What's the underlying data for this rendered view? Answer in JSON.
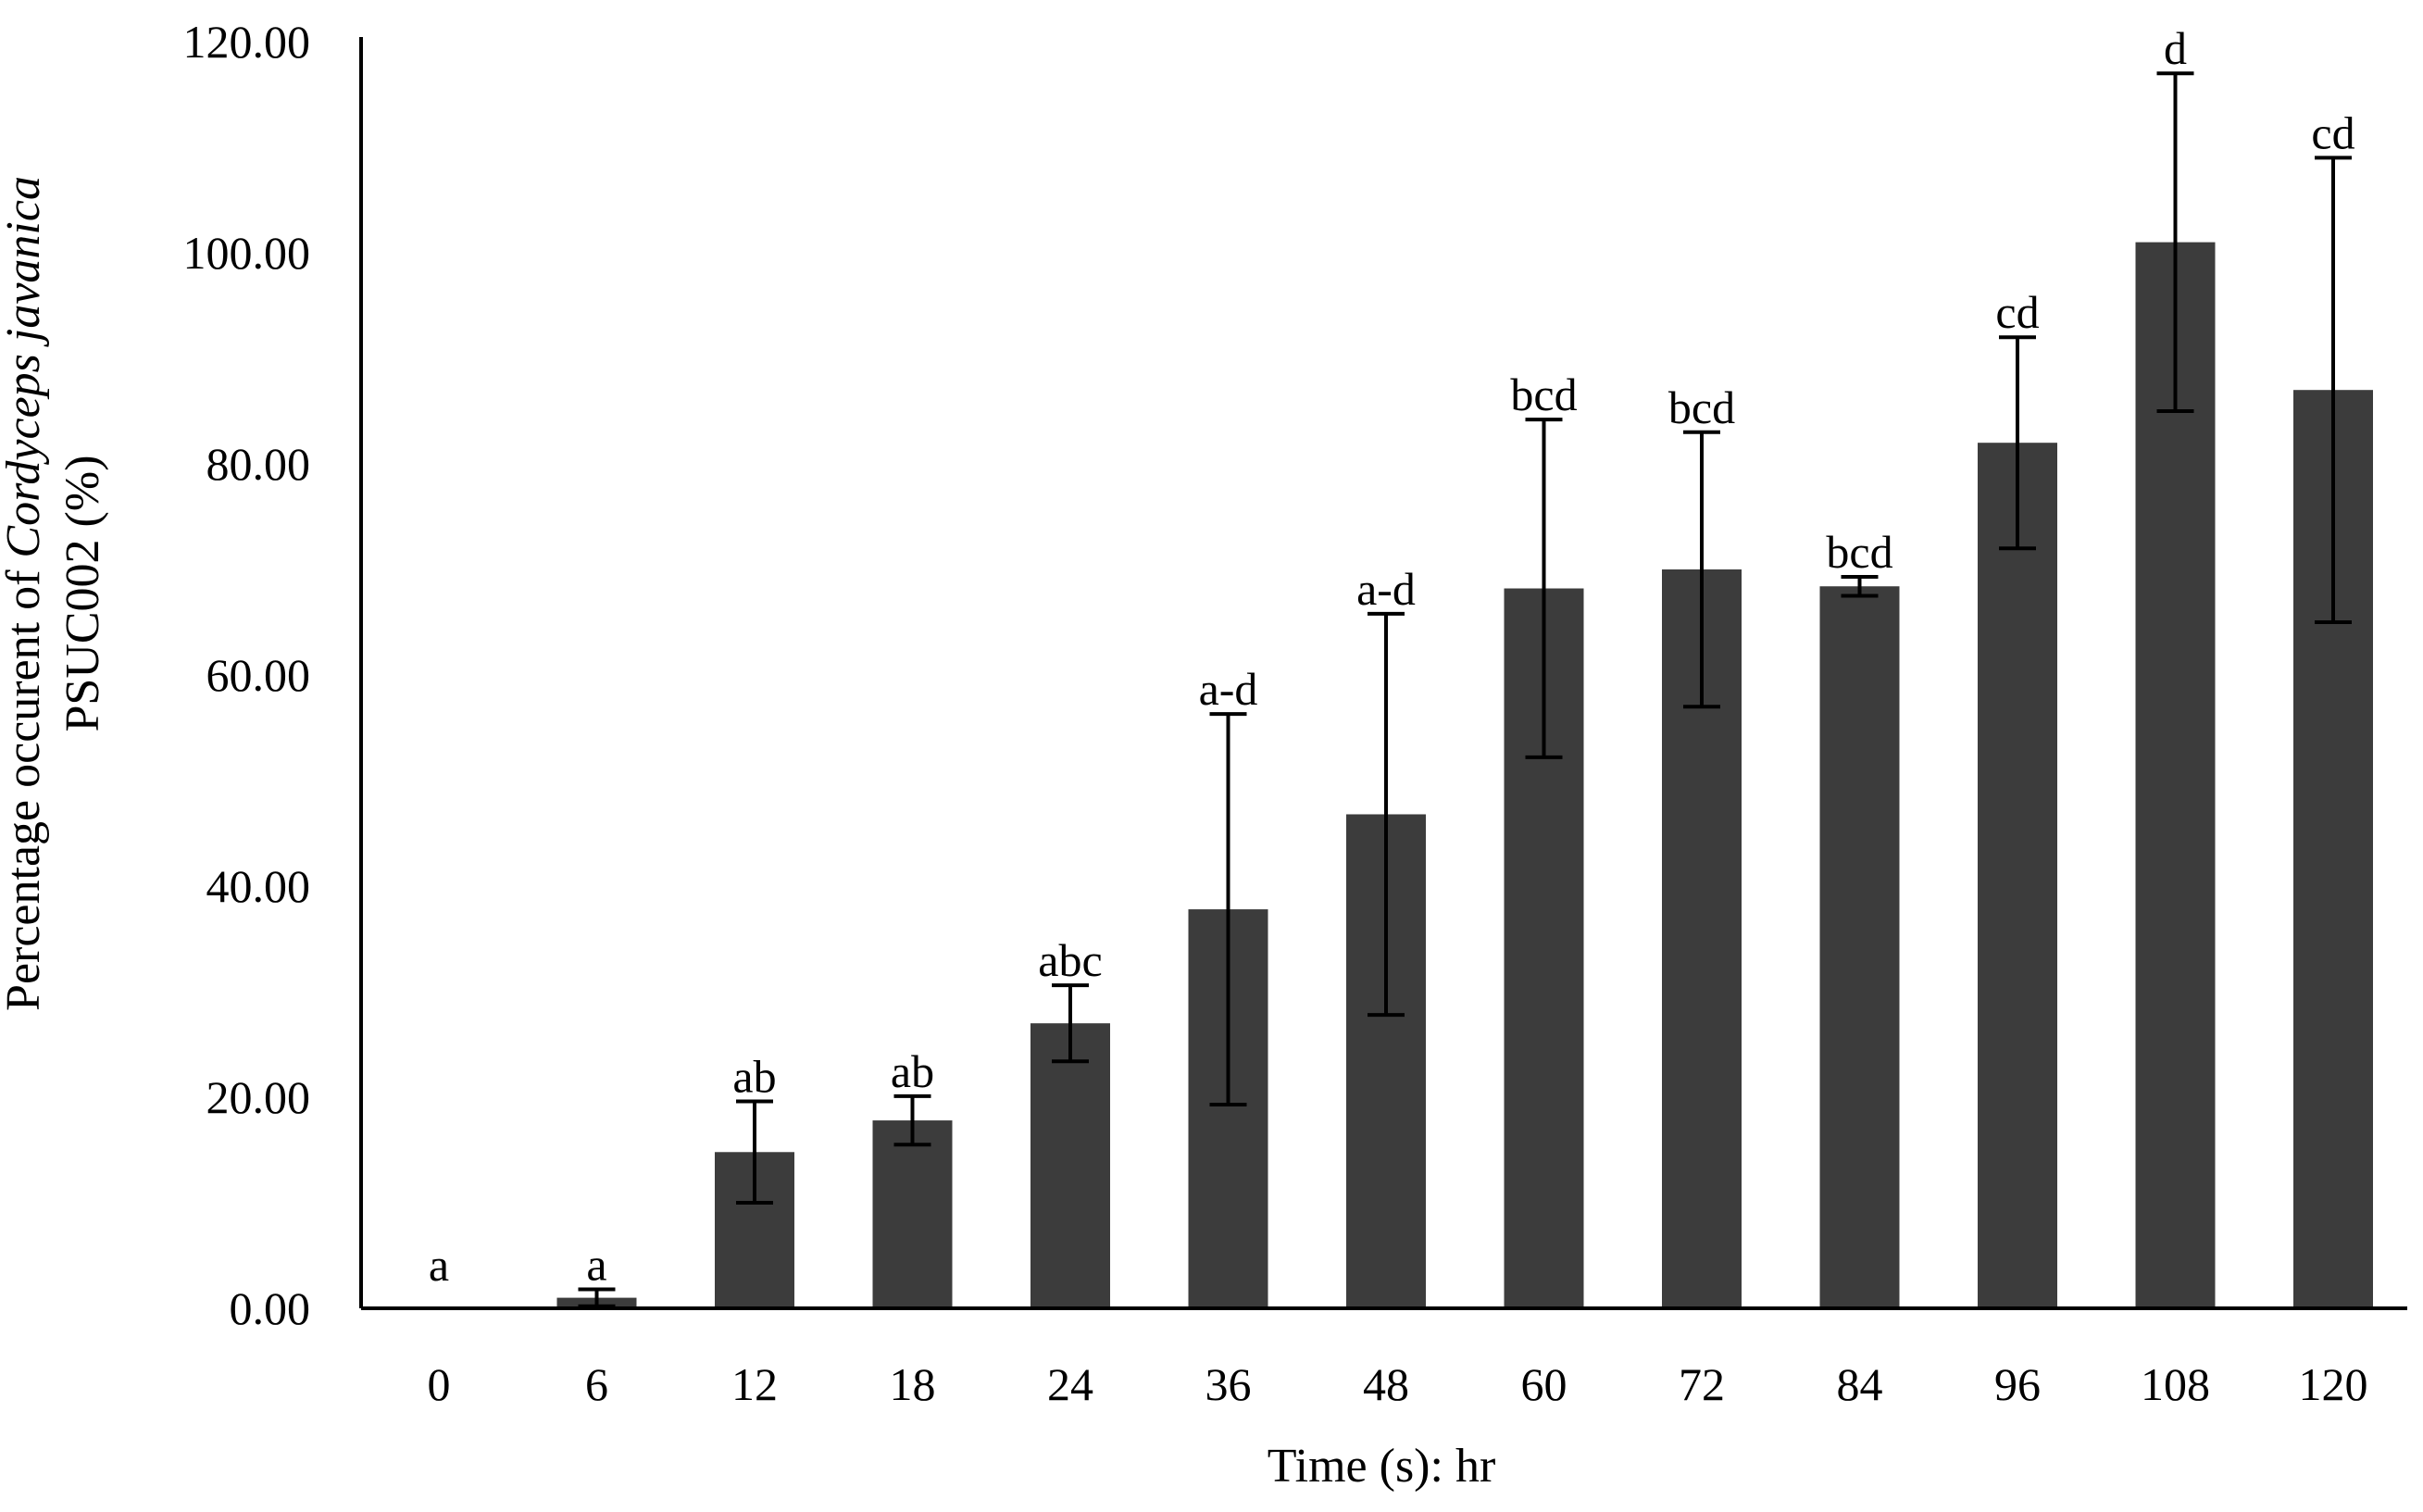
{
  "chart_data": {
    "type": "bar",
    "title": "",
    "categories": [
      "0",
      "6",
      "12",
      "18",
      "24",
      "36",
      "48",
      "60",
      "72",
      "84",
      "96",
      "108",
      "120"
    ],
    "values": [
      0.0,
      1.0,
      14.8,
      17.8,
      27.0,
      37.8,
      46.8,
      68.2,
      70.0,
      68.4,
      82.0,
      101.0,
      87.0
    ],
    "errors": [
      0.0,
      0.8,
      4.8,
      2.3,
      3.6,
      18.5,
      19.0,
      16.0,
      13.0,
      0.9,
      10.0,
      16.0,
      22.0
    ],
    "significance_letters": [
      "a",
      "a",
      "ab",
      "ab",
      "abc",
      "a-d",
      "a-d",
      "bcd",
      "bcd",
      "bcd",
      "cd",
      "d",
      "cd"
    ],
    "xlabel": "Time (s): hr",
    "ylabel_prefix": "Percentage occurent of ",
    "ylabel_species": "Cordyceps javanica",
    "ylabel_line2": "PSUC002 (%)",
    "ylim": [
      0,
      120
    ],
    "yticks": [
      "0.00",
      "20.00",
      "40.00",
      "60.00",
      "80.00",
      "100.00",
      "120.00"
    ],
    "ytick_values": [
      0,
      20,
      40,
      60,
      80,
      100,
      120
    ],
    "grid": false,
    "legend": "none",
    "bar_color": "#3c3c3c",
    "axis_color": "#000000"
  }
}
